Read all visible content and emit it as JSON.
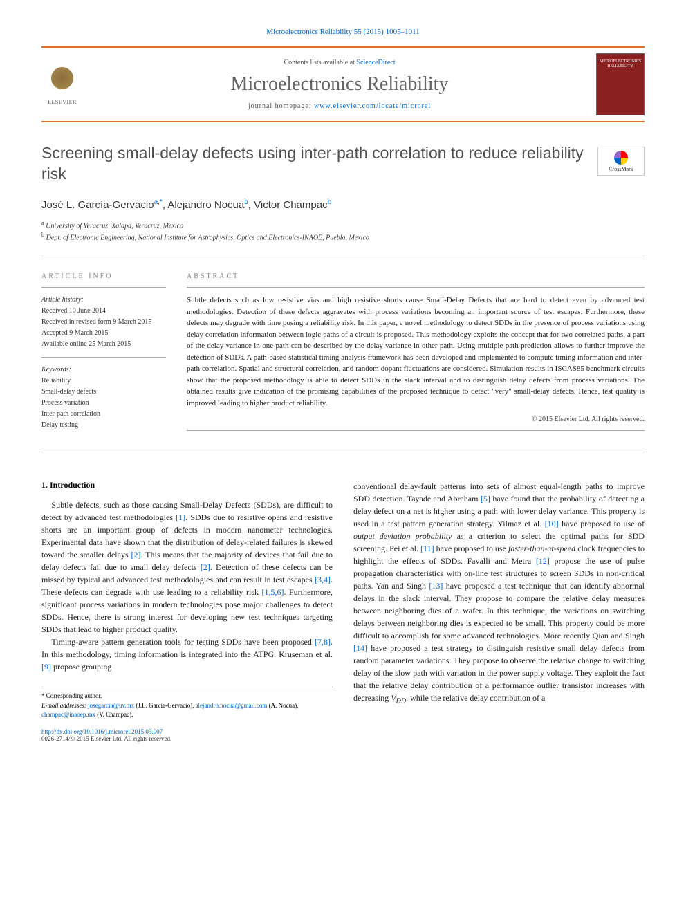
{
  "header": {
    "citation_link": "Microelectronics Reliability 55 (2015) 1005–1011",
    "contents_prefix": "Contents lists available at ",
    "contents_link": "ScienceDirect",
    "journal_name": "Microelectronics Reliability",
    "homepage_prefix": "journal homepage: ",
    "homepage_url": "www.elsevier.com/locate/microrel",
    "publisher_logo_text": "ELSEVIER",
    "cover_text": "MICROELECTRONICS RELIABILITY"
  },
  "crossmark": {
    "label": "CrossMark"
  },
  "article": {
    "title": "Screening small-delay defects using inter-path correlation to reduce reliability risk",
    "authors_html": [
      {
        "name": "José L. García-Gervacio",
        "sup": "a,",
        "corr": "*"
      },
      {
        "name": "Alejandro Nocua",
        "sup": "b"
      },
      {
        "name": "Victor Champac",
        "sup": "b"
      }
    ],
    "affiliations": [
      {
        "sup": "a",
        "text": "University of Veracruz, Xalapa, Veracruz, Mexico"
      },
      {
        "sup": "b",
        "text": "Dept. of Electronic Engineering, National Institute for Astrophysics, Optics and Electronics-INAOE, Puebla, Mexico"
      }
    ]
  },
  "article_info": {
    "header": "ARTICLE INFO",
    "history_label": "Article history:",
    "history": [
      "Received 10 June 2014",
      "Received in revised form 9 March 2015",
      "Accepted 9 March 2015",
      "Available online 25 March 2015"
    ],
    "keywords_label": "Keywords:",
    "keywords": [
      "Reliability",
      "Small-delay defects",
      "Process variation",
      "Inter-path correlation",
      "Delay testing"
    ]
  },
  "abstract": {
    "header": "ABSTRACT",
    "text": "Subtle defects such as low resistive vias and high resistive shorts cause Small-Delay Defects that are hard to detect even by advanced test methodologies. Detection of these defects aggravates with process variations becoming an important source of test escapes. Furthermore, these defects may degrade with time posing a reliability risk. In this paper, a novel methodology to detect SDDs in the presence of process variations using delay correlation information between logic paths of a circuit is proposed. This methodology exploits the concept that for two correlated paths, a part of the delay variance in one path can be described by the delay variance in other path. Using multiple path prediction allows to further improve the detection of SDDs. A path-based statistical timing analysis framework has been developed and implemented to compute timing information and inter-path correlation. Spatial and structural correlation, and random dopant fluctuations are considered. Simulation results in ISCAS85 benchmark circuits show that the proposed methodology is able to detect SDDs in the slack interval and to distinguish delay defects from process variations. The obtained results give indication of the promising capabilities of the proposed technique to detect \"very\" small-delay defects. Hence, test quality is improved leading to higher product reliability.",
    "copyright": "© 2015 Elsevier Ltd. All rights reserved."
  },
  "body": {
    "section_number": "1.",
    "section_title": "Introduction",
    "para1_pre": "Subtle defects, such as those causing Small-Delay Defects (SDDs), are difficult to detect by advanced test methodologies ",
    "ref1": "[1]",
    "para1_a": ". SDDs due to resistive opens and resistive shorts are an important group of defects in modern nanometer technologies. Experimental data have shown that the distribution of delay-related failures is skewed toward the smaller delays ",
    "ref2": "[2]",
    "para1_b": ". This means that the majority of devices that fail due to delay defects fail due to small delay defects ",
    "ref2b": "[2]",
    "para1_c": ". Detection of these defects can be missed by typical and advanced test methodologies and can result in test escapes ",
    "ref34": "[3,4]",
    "para1_d": ". These defects can degrade with use leading to a reliability risk ",
    "ref156": "[1,5,6]",
    "para1_e": ". Furthermore, significant process variations in modern technologies pose major challenges to detect SDDs. Hence, there is strong interest for developing new test techniques targeting SDDs that lead to higher product quality.",
    "para2_a": "Timing-aware pattern generation tools for testing SDDs have been proposed ",
    "ref78": "[7,8]",
    "para2_b": ". In this methodology, timing information is integrated into the ATPG. Kruseman et al. ",
    "ref9": "[9]",
    "para2_c": " propose grouping",
    "col2_a": "conventional delay-fault patterns into sets of almost equal-length paths to improve SDD detection. Tayade and Abraham ",
    "ref5": "[5]",
    "col2_b": " have found that the probability of detecting a delay defect on a net is higher using a path with lower delay variance. This property is used in a test pattern generation strategy. Yilmaz et al. ",
    "ref10": "[10]",
    "col2_c": " have proposed to use of ",
    "em1": "output deviation probability",
    "col2_d": " as a criterion to select the optimal paths for SDD screening. Pei et al. ",
    "ref11": "[11]",
    "col2_e": " have proposed to use ",
    "em2": "faster-than-at-speed",
    "col2_f": " clock frequencies to highlight the effects of SDDs. Favalli and Metra ",
    "ref12": "[12]",
    "col2_g": " propose the use of pulse propagation characteristics with on-line test structures to screen SDDs in non-critical paths. Yan and Singh ",
    "ref13": "[13]",
    "col2_h": " have proposed a test technique that can identify abnormal delays in the slack interval. They propose to compare the relative delay measures between neighboring dies of a wafer. In this technique, the variations on switching delays between neighboring dies is expected to be small. This property could be more difficult to accomplish for some advanced technologies. More recently Qian and Singh ",
    "ref14": "[14]",
    "col2_i": " have proposed a test strategy to distinguish resistive small delay defects from random parameter variations. They propose to observe the relative change to switching delay of the slow path with variation in the power supply voltage. They exploit the fact that the relative delay contribution of a performance outlier transistor increases with decreasing ",
    "vdd": "V",
    "vdd_sub": "DD",
    "col2_j": ", while the relative delay contribution of a"
  },
  "footnotes": {
    "corr": "* Corresponding author.",
    "email_label": "E-mail addresses:",
    "emails": [
      {
        "addr": "josegarcia@uv.mx",
        "name": "(J.L. García-Gervacio)"
      },
      {
        "addr": "alejandro.nocua@gmail.com",
        "name": "(A. Nocua)"
      },
      {
        "addr": "champac@inaoep.mx",
        "name": "(V. Champac)"
      }
    ],
    "doi": "http://dx.doi.org/10.1016/j.microrel.2015.03.007",
    "issn": "0026-2714/© 2015 Elsevier Ltd. All rights reserved."
  },
  "colors": {
    "accent": "#e07030",
    "link": "#0066cc",
    "title_gray": "#505050"
  }
}
